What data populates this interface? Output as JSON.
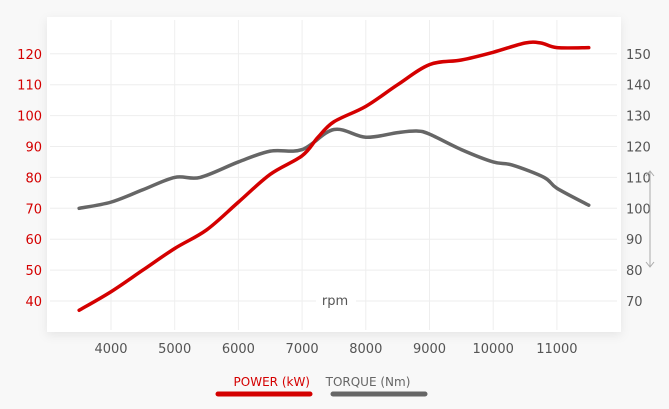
{
  "chart_data": {
    "type": "line",
    "xlabel": "rpm",
    "x_ticks": [
      4000,
      5000,
      6000,
      7000,
      8000,
      9000,
      10000,
      11000
    ],
    "xlim": [
      3500,
      11500
    ],
    "y_left": {
      "ticks": [
        40,
        50,
        60,
        70,
        80,
        90,
        100,
        110,
        120
      ],
      "color": "#d40000"
    },
    "y_right": {
      "ticks": [
        70,
        80,
        90,
        100,
        110,
        120,
        130,
        140,
        150
      ],
      "color": "#555555"
    },
    "grid": true,
    "legend_position": "bottom",
    "series": [
      {
        "name": "POWER (kW)",
        "axis": "left",
        "color": "#d40000",
        "x": [
          3500,
          4000,
          4500,
          5000,
          5500,
          6000,
          6500,
          7000,
          7250,
          7500,
          8000,
          8500,
          9000,
          9500,
          10000,
          10500,
          10750,
          11000,
          11500
        ],
        "y": [
          37,
          43,
          50,
          57,
          63,
          72,
          81,
          87,
          93,
          98,
          103,
          110,
          116.5,
          118,
          120.5,
          123.5,
          123.5,
          122,
          122
        ]
      },
      {
        "name": "TORQUE (Nm)",
        "axis": "right",
        "color": "#666666",
        "x": [
          3500,
          4000,
          4500,
          5000,
          5400,
          6000,
          6500,
          7000,
          7500,
          8000,
          8500,
          8800,
          9000,
          9500,
          10000,
          10300,
          10800,
          11000,
          11500
        ],
        "y": [
          100,
          102,
          106,
          110,
          110,
          115,
          118.5,
          119,
          125.5,
          123,
          124.5,
          125,
          124,
          119,
          115,
          114,
          110,
          106.5,
          101
        ]
      }
    ]
  }
}
